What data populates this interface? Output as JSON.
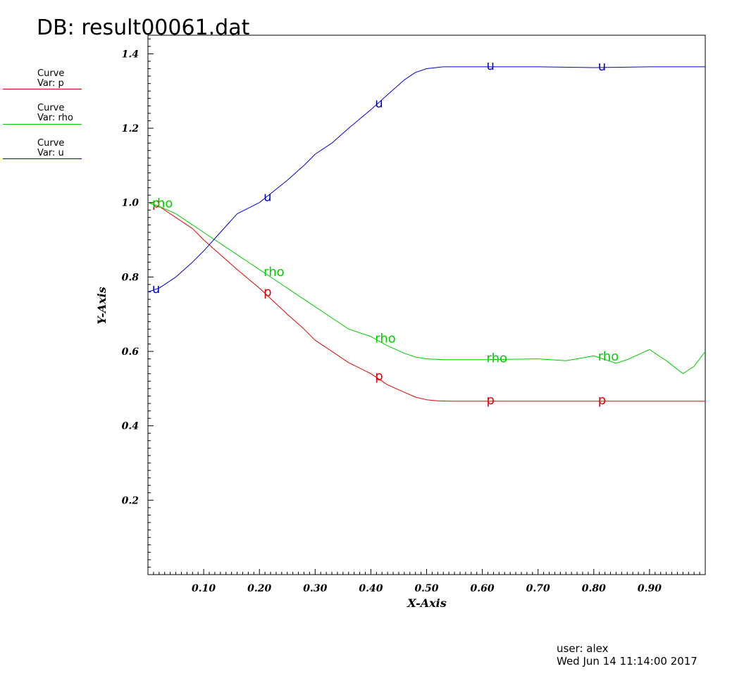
{
  "header": {
    "title": "DB: result00061.dat"
  },
  "legend": [
    {
      "title": "Curve",
      "var_label": "Var: p",
      "color": "#e00000"
    },
    {
      "title": "Curve",
      "var_label": "Var: rho",
      "color": "#00cc00"
    },
    {
      "title": "Curve",
      "var_label": "Var: u",
      "color": "#0000cc"
    }
  ],
  "footer": {
    "user": "user: alex",
    "date": "Wed Jun 14 11:14:00 2017"
  },
  "chart_data": {
    "type": "line",
    "title": "DB: result00061.dat",
    "xlabel": "X-Axis",
    "ylabel": "Y-Axis",
    "xlim": [
      0.0,
      1.0
    ],
    "ylim": [
      0.0,
      1.45
    ],
    "x_ticks": [
      "0.10",
      "0.20",
      "0.30",
      "0.40",
      "0.50",
      "0.60",
      "0.70",
      "0.80",
      "0.90"
    ],
    "y_ticks": [
      "0.2",
      "0.4",
      "0.6",
      "0.8",
      "1.0",
      "1.2",
      "1.4"
    ],
    "grid": false,
    "legend_placement": "top-left outside",
    "series": [
      {
        "name": "p",
        "label": "p",
        "color": "#e00000",
        "marker_x": [
          0.01,
          0.21,
          0.41,
          0.61,
          0.81
        ],
        "x": [
          0.0,
          0.02,
          0.05,
          0.08,
          0.1,
          0.13,
          0.16,
          0.2,
          0.25,
          0.28,
          0.3,
          0.33,
          0.36,
          0.4,
          0.43,
          0.46,
          0.48,
          0.5,
          0.52,
          0.55,
          0.6,
          0.7,
          0.8,
          0.9,
          0.95,
          1.0
        ],
        "y": [
          1.0,
          0.99,
          0.96,
          0.93,
          0.9,
          0.86,
          0.82,
          0.77,
          0.7,
          0.66,
          0.63,
          0.6,
          0.57,
          0.54,
          0.51,
          0.49,
          0.477,
          0.47,
          0.467,
          0.466,
          0.466,
          0.466,
          0.466,
          0.466,
          0.466,
          0.466
        ]
      },
      {
        "name": "rho",
        "label": "rho",
        "color": "#00cc00",
        "marker_x": [
          0.01,
          0.21,
          0.41,
          0.61,
          0.81
        ],
        "x": [
          0.0,
          0.02,
          0.05,
          0.08,
          0.1,
          0.13,
          0.16,
          0.2,
          0.25,
          0.28,
          0.3,
          0.33,
          0.36,
          0.4,
          0.43,
          0.46,
          0.48,
          0.5,
          0.53,
          0.6,
          0.7,
          0.75,
          0.8,
          0.84,
          0.86,
          0.9,
          0.93,
          0.96,
          0.98,
          1.0
        ],
        "y": [
          1.0,
          0.99,
          0.97,
          0.94,
          0.92,
          0.89,
          0.86,
          0.82,
          0.77,
          0.74,
          0.72,
          0.69,
          0.66,
          0.64,
          0.615,
          0.595,
          0.585,
          0.58,
          0.578,
          0.578,
          0.58,
          0.575,
          0.588,
          0.568,
          0.578,
          0.605,
          0.575,
          0.54,
          0.56,
          0.6
        ]
      },
      {
        "name": "u",
        "label": "u",
        "color": "#0000cc",
        "marker_x": [
          0.01,
          0.21,
          0.41,
          0.61,
          0.81
        ],
        "x": [
          0.0,
          0.02,
          0.05,
          0.08,
          0.1,
          0.13,
          0.16,
          0.2,
          0.25,
          0.28,
          0.3,
          0.33,
          0.36,
          0.4,
          0.43,
          0.46,
          0.48,
          0.5,
          0.53,
          0.6,
          0.7,
          0.8,
          0.9,
          0.97,
          1.0
        ],
        "y": [
          0.76,
          0.77,
          0.8,
          0.84,
          0.87,
          0.92,
          0.97,
          1.0,
          1.06,
          1.1,
          1.13,
          1.16,
          1.2,
          1.25,
          1.29,
          1.33,
          1.35,
          1.36,
          1.365,
          1.365,
          1.365,
          1.363,
          1.365,
          1.365,
          1.365
        ]
      }
    ]
  }
}
